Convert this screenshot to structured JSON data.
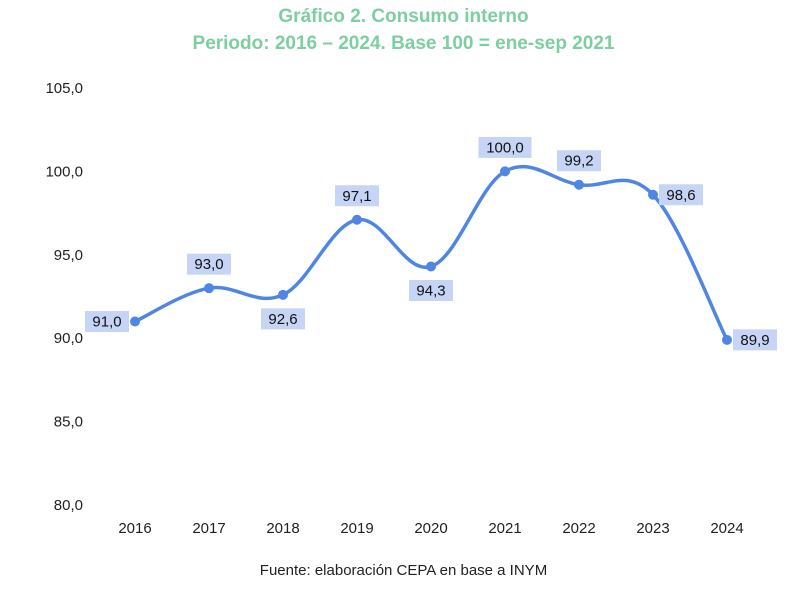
{
  "chart_data": {
    "type": "line",
    "title": "Gráfico 2. Consumo interno",
    "subtitle": "Periodo: 2016 – 2024. Base 100 = ene-sep 2021",
    "categories": [
      "2016",
      "2017",
      "2018",
      "2019",
      "2020",
      "2021",
      "2022",
      "2023",
      "2024"
    ],
    "values": [
      91.0,
      93.0,
      92.6,
      97.1,
      94.3,
      100.0,
      99.2,
      98.6,
      89.9
    ],
    "value_labels": [
      "91,0",
      "93,0",
      "92,6",
      "97,1",
      "94,3",
      "100,0",
      "99,2",
      "98,6",
      "89,9"
    ],
    "ylim": [
      80,
      105
    ],
    "yticks": [
      80,
      85,
      90,
      95,
      100,
      105
    ],
    "ytick_labels": [
      "80,0",
      "85,0",
      "90,0",
      "95,0",
      "100,0",
      "105,0"
    ],
    "grid": false,
    "legend": "none",
    "line_color": "#4f86e6",
    "label_bg_color": "#c6d4f5",
    "title_color": "#7dcfa0"
  },
  "source": "Fuente: elaboración CEPA en base a INYM"
}
